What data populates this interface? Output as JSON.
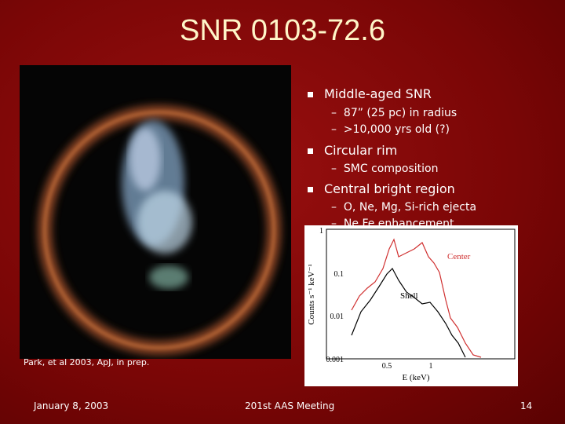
{
  "title": "SNR 0103-72.6",
  "bullets": [
    {
      "text": "Middle-aged SNR",
      "subs": [
        "87” (25 pc) in radius",
        ">10,000 yrs old (?)"
      ]
    },
    {
      "text": "Circular rim",
      "subs": [
        "SMC composition"
      ]
    },
    {
      "text": "Central bright region",
      "subs": [
        "O, Ne, Mg, Si-rich ejecta",
        "Ne,Fe enhancement"
      ]
    }
  ],
  "citation": "Park, et al 2003, ApJ, in prep.",
  "inset": {
    "ylabel": "Counts s⁻¹ keV⁻¹",
    "xlabel": "E (keV)",
    "yticks": [
      "1",
      "0.1",
      "0.01",
      "0.001"
    ],
    "xticks": [
      "0.5",
      "1"
    ],
    "labels": [
      "Center",
      "Shell"
    ]
  },
  "footer": {
    "date": "January 8, 2003",
    "event": "201st AAS Meeting",
    "page": "14"
  }
}
